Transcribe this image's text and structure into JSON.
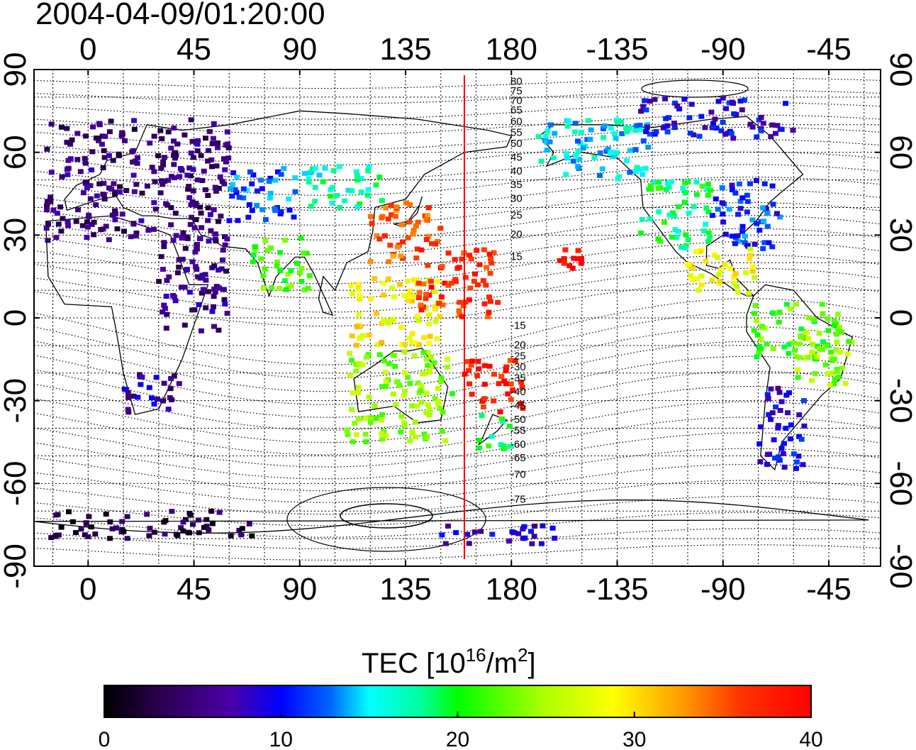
{
  "timestamp": "2004-04-09/01:20:00",
  "lon_ticks": [
    "0",
    "45",
    "90",
    "135",
    "180",
    "-135",
    "-90",
    "-45"
  ],
  "lat_ticks": [
    "90",
    "60",
    "30",
    "0",
    "-30",
    "-60",
    "-90"
  ],
  "contour_labels_north": [
    "80",
    "75",
    "70",
    "65",
    "60",
    "55",
    "50",
    "45",
    "40",
    "35",
    "30",
    "25",
    "20",
    "15"
  ],
  "contour_labels_south": [
    "-15",
    "-20",
    "-25",
    "-30",
    "-35",
    "-40",
    "-45",
    "-50",
    "-55",
    "-60",
    "-65",
    "-70",
    "-75"
  ],
  "colorbar": {
    "title_main": "TEC  [10",
    "title_sup1": "16",
    "title_mid": "/m",
    "title_sup2": "2",
    "title_end": "]",
    "tick_labels": [
      "0",
      "10",
      "20",
      "30",
      "40"
    ],
    "min": 0,
    "max": 40
  },
  "marker_line": {
    "longitude": 160,
    "color": "#ff0000"
  },
  "colors": {
    "frame": "#000000",
    "background": "#ffffff"
  },
  "tec_regions": [
    {
      "name": "europe",
      "lon": [
        -18,
        60
      ],
      "lat": [
        28,
        72
      ],
      "tec": 5
    },
    {
      "name": "europe-east",
      "lon": [
        60,
        90
      ],
      "lat": [
        35,
        55
      ],
      "tec": 12
    },
    {
      "name": "north-africa-mideast",
      "lon": [
        30,
        60
      ],
      "lat": [
        -5,
        30
      ],
      "tec": 6
    },
    {
      "name": "south-africa",
      "lon": [
        15,
        40
      ],
      "lat": [
        -35,
        -20
      ],
      "tec": 7
    },
    {
      "name": "india",
      "lon": [
        70,
        95
      ],
      "lat": [
        10,
        30
      ],
      "tec": 22
    },
    {
      "name": "central-asia",
      "lon": [
        90,
        125
      ],
      "lat": [
        40,
        55
      ],
      "tec": 17
    },
    {
      "name": "japan-east-china",
      "lon": [
        120,
        150
      ],
      "lat": [
        20,
        42
      ],
      "tec": 35
    },
    {
      "name": "philippines-indonesia",
      "lon": [
        110,
        150
      ],
      "lat": [
        -10,
        15
      ],
      "tec": 29
    },
    {
      "name": "pacific-west",
      "lon": [
        140,
        175
      ],
      "lat": [
        0,
        25
      ],
      "tec": 37
    },
    {
      "name": "australia",
      "lon": [
        110,
        155
      ],
      "lat": [
        -45,
        -12
      ],
      "tec": 24
    },
    {
      "name": "new-zealand",
      "lon": [
        165,
        180
      ],
      "lat": [
        -48,
        -35
      ],
      "tec": 19
    },
    {
      "name": "pacific-south",
      "lon": [
        160,
        185
      ],
      "lat": [
        -35,
        -15
      ],
      "tec": 38
    },
    {
      "name": "hawaii",
      "lon": [
        -160,
        -150
      ],
      "lat": [
        18,
        25
      ],
      "tec": 39
    },
    {
      "name": "alaska-canada-west",
      "lon": [
        -170,
        -120
      ],
      "lat": [
        50,
        72
      ],
      "tec": 15
    },
    {
      "name": "usa-west",
      "lon": [
        -125,
        -95
      ],
      "lat": [
        25,
        50
      ],
      "tec": 19
    },
    {
      "name": "usa-east",
      "lon": [
        -95,
        -65
      ],
      "lat": [
        25,
        50
      ],
      "tec": 11
    },
    {
      "name": "canada-north",
      "lon": [
        -125,
        -60
      ],
      "lat": [
        65,
        80
      ],
      "tec": 9
    },
    {
      "name": "central-america",
      "lon": [
        -105,
        -75
      ],
      "lat": [
        8,
        25
      ],
      "tec": 28
    },
    {
      "name": "south-america-north",
      "lon": [
        -80,
        -40
      ],
      "lat": [
        -15,
        5
      ],
      "tec": 22
    },
    {
      "name": "brazil",
      "lon": [
        -60,
        -35
      ],
      "lat": [
        -25,
        -5
      ],
      "tec": 24
    },
    {
      "name": "south-america-south",
      "lon": [
        -75,
        -55
      ],
      "lat": [
        -55,
        -25
      ],
      "tec": 9
    },
    {
      "name": "antarctic-west",
      "lon": [
        -18,
        70
      ],
      "lat": [
        -80,
        -70
      ],
      "tec": 3
    },
    {
      "name": "antarctic-east",
      "lon": [
        150,
        200
      ],
      "lat": [
        -82,
        -75
      ],
      "tec": 8
    }
  ]
}
